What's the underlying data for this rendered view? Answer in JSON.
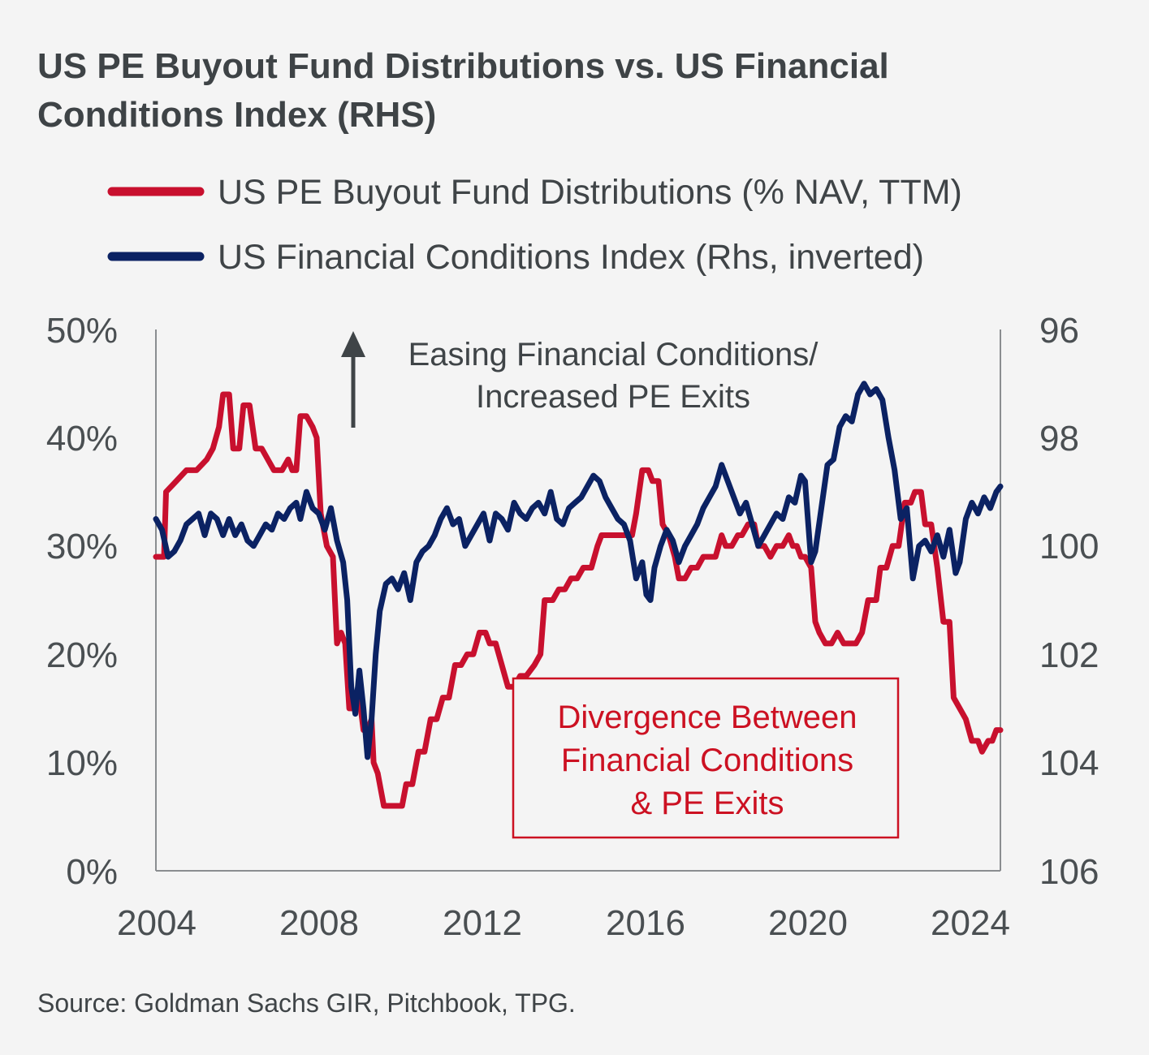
{
  "title_line1": "US PE Buyout Fund Distributions vs. US Financial",
  "title_line2": "Conditions Index (RHS)",
  "source": "Source: Goldman Sachs GIR, Pitchbook, TPG.",
  "colors": {
    "red": "#c8102e",
    "navy": "#0b2263",
    "axis": "#8a8d90",
    "text": "#3f4447"
  },
  "chart_data": {
    "type": "line",
    "title": "US PE Buyout Fund Distributions vs. US Financial Conditions Index (RHS)",
    "x_ticks": [
      "2004",
      "2008",
      "2012",
      "2016",
      "2020",
      "2024"
    ],
    "xlim": [
      2004,
      2024.75
    ],
    "y_left": {
      "ticks": [
        "50%",
        "40%",
        "30%",
        "20%",
        "10%",
        "0%"
      ],
      "ylim": [
        0,
        50
      ],
      "unit": "%"
    },
    "y_right": {
      "ticks": [
        "96",
        "98",
        "100",
        "102",
        "104",
        "106"
      ],
      "ylim": [
        96,
        106
      ],
      "inverted": true
    },
    "annotations": {
      "arrow_line1": "Easing Financial Conditions/",
      "arrow_line2": "Increased PE Exits",
      "box_line1": "Divergence Between",
      "box_line2": "Financial Conditions",
      "box_line3": "& PE Exits"
    },
    "series": [
      {
        "name": "US PE Buyout Fund Distributions (% NAV, TTM)",
        "axis": "left",
        "color": "#c8102e",
        "points": [
          [
            2004.0,
            29
          ],
          [
            2004.2,
            29
          ],
          [
            2004.25,
            35
          ],
          [
            2004.5,
            36
          ],
          [
            2004.75,
            37
          ],
          [
            2005.0,
            37
          ],
          [
            2005.25,
            38
          ],
          [
            2005.4,
            39
          ],
          [
            2005.55,
            41
          ],
          [
            2005.65,
            44
          ],
          [
            2005.8,
            44
          ],
          [
            2005.9,
            39
          ],
          [
            2006.05,
            39
          ],
          [
            2006.15,
            43
          ],
          [
            2006.3,
            43
          ],
          [
            2006.45,
            39
          ],
          [
            2006.6,
            39
          ],
          [
            2006.75,
            38
          ],
          [
            2006.9,
            37
          ],
          [
            2007.1,
            37
          ],
          [
            2007.25,
            38
          ],
          [
            2007.35,
            37
          ],
          [
            2007.45,
            37
          ],
          [
            2007.55,
            42
          ],
          [
            2007.7,
            42
          ],
          [
            2007.85,
            41
          ],
          [
            2007.95,
            40
          ],
          [
            2008.05,
            33
          ],
          [
            2008.2,
            30
          ],
          [
            2008.35,
            29
          ],
          [
            2008.45,
            21
          ],
          [
            2008.55,
            22
          ],
          [
            2008.65,
            21
          ],
          [
            2008.75,
            15
          ],
          [
            2008.9,
            15
          ],
          [
            2009.0,
            16
          ],
          [
            2009.1,
            13
          ],
          [
            2009.2,
            13
          ],
          [
            2009.3,
            14
          ],
          [
            2009.35,
            10
          ],
          [
            2009.45,
            9
          ],
          [
            2009.6,
            6
          ],
          [
            2009.75,
            6
          ],
          [
            2009.9,
            6
          ],
          [
            2010.05,
            6
          ],
          [
            2010.15,
            8
          ],
          [
            2010.3,
            8
          ],
          [
            2010.45,
            11
          ],
          [
            2010.6,
            11
          ],
          [
            2010.75,
            14
          ],
          [
            2010.9,
            14
          ],
          [
            2011.05,
            16
          ],
          [
            2011.2,
            16
          ],
          [
            2011.35,
            19
          ],
          [
            2011.5,
            19
          ],
          [
            2011.65,
            20
          ],
          [
            2011.8,
            20
          ],
          [
            2011.95,
            22
          ],
          [
            2012.1,
            22
          ],
          [
            2012.2,
            21
          ],
          [
            2012.35,
            21
          ],
          [
            2012.5,
            19
          ],
          [
            2012.65,
            17
          ],
          [
            2012.8,
            17
          ],
          [
            2012.95,
            18
          ],
          [
            2013.1,
            18
          ],
          [
            2013.3,
            19
          ],
          [
            2013.45,
            20
          ],
          [
            2013.55,
            25
          ],
          [
            2013.75,
            25
          ],
          [
            2013.9,
            26
          ],
          [
            2014.05,
            26
          ],
          [
            2014.2,
            27
          ],
          [
            2014.35,
            27
          ],
          [
            2014.5,
            28
          ],
          [
            2014.7,
            28
          ],
          [
            2014.85,
            30
          ],
          [
            2014.95,
            31
          ],
          [
            2015.1,
            31
          ],
          [
            2015.3,
            31
          ],
          [
            2015.5,
            31
          ],
          [
            2015.7,
            31
          ],
          [
            2015.8,
            33
          ],
          [
            2015.95,
            37
          ],
          [
            2016.1,
            37
          ],
          [
            2016.2,
            36
          ],
          [
            2016.35,
            36
          ],
          [
            2016.45,
            32
          ],
          [
            2016.6,
            31
          ],
          [
            2016.75,
            29
          ],
          [
            2016.85,
            27
          ],
          [
            2017.0,
            27
          ],
          [
            2017.15,
            28
          ],
          [
            2017.3,
            28
          ],
          [
            2017.45,
            29
          ],
          [
            2017.6,
            29
          ],
          [
            2017.75,
            29
          ],
          [
            2017.9,
            31
          ],
          [
            2018.0,
            30
          ],
          [
            2018.15,
            30
          ],
          [
            2018.3,
            31
          ],
          [
            2018.4,
            31
          ],
          [
            2018.55,
            32
          ],
          [
            2018.7,
            32
          ],
          [
            2018.8,
            30
          ],
          [
            2018.95,
            30
          ],
          [
            2019.1,
            29
          ],
          [
            2019.25,
            30
          ],
          [
            2019.4,
            30
          ],
          [
            2019.55,
            31
          ],
          [
            2019.65,
            30
          ],
          [
            2019.75,
            30
          ],
          [
            2019.85,
            29
          ],
          [
            2019.95,
            29
          ],
          [
            2020.1,
            28
          ],
          [
            2020.2,
            23
          ],
          [
            2020.3,
            22
          ],
          [
            2020.45,
            21
          ],
          [
            2020.6,
            21
          ],
          [
            2020.75,
            22
          ],
          [
            2020.9,
            21
          ],
          [
            2021.05,
            21
          ],
          [
            2021.2,
            21
          ],
          [
            2021.35,
            22
          ],
          [
            2021.5,
            25
          ],
          [
            2021.7,
            25
          ],
          [
            2021.8,
            28
          ],
          [
            2021.95,
            28
          ],
          [
            2022.1,
            30
          ],
          [
            2022.25,
            30
          ],
          [
            2022.4,
            34
          ],
          [
            2022.55,
            34
          ],
          [
            2022.65,
            35
          ],
          [
            2022.8,
            35
          ],
          [
            2022.9,
            32
          ],
          [
            2023.05,
            32
          ],
          [
            2023.2,
            28
          ],
          [
            2023.35,
            23
          ],
          [
            2023.5,
            23
          ],
          [
            2023.6,
            16
          ],
          [
            2023.75,
            15
          ],
          [
            2023.9,
            14
          ],
          [
            2024.05,
            12
          ],
          [
            2024.2,
            12
          ],
          [
            2024.3,
            11
          ],
          [
            2024.45,
            12
          ],
          [
            2024.55,
            12
          ],
          [
            2024.65,
            13
          ],
          [
            2024.75,
            13
          ]
        ]
      },
      {
        "name": "US Financial Conditions Index (Rhs, inverted)",
        "axis": "right",
        "color": "#0b2263",
        "points": [
          [
            2004.0,
            99.5
          ],
          [
            2004.15,
            99.7
          ],
          [
            2004.3,
            100.2
          ],
          [
            2004.45,
            100.1
          ],
          [
            2004.6,
            99.9
          ],
          [
            2004.75,
            99.6
          ],
          [
            2004.9,
            99.5
          ],
          [
            2005.05,
            99.4
          ],
          [
            2005.2,
            99.8
          ],
          [
            2005.35,
            99.4
          ],
          [
            2005.5,
            99.5
          ],
          [
            2005.65,
            99.8
          ],
          [
            2005.8,
            99.5
          ],
          [
            2005.95,
            99.8
          ],
          [
            2006.1,
            99.6
          ],
          [
            2006.25,
            99.9
          ],
          [
            2006.4,
            100.0
          ],
          [
            2006.55,
            99.8
          ],
          [
            2006.7,
            99.6
          ],
          [
            2006.85,
            99.7
          ],
          [
            2007.0,
            99.4
          ],
          [
            2007.15,
            99.5
          ],
          [
            2007.3,
            99.3
          ],
          [
            2007.45,
            99.2
          ],
          [
            2007.55,
            99.5
          ],
          [
            2007.7,
            99.0
          ],
          [
            2007.85,
            99.3
          ],
          [
            2008.0,
            99.4
          ],
          [
            2008.15,
            99.7
          ],
          [
            2008.3,
            99.3
          ],
          [
            2008.45,
            99.9
          ],
          [
            2008.6,
            100.3
          ],
          [
            2008.7,
            101.0
          ],
          [
            2008.8,
            102.6
          ],
          [
            2008.9,
            103.1
          ],
          [
            2009.0,
            102.3
          ],
          [
            2009.1,
            103.0
          ],
          [
            2009.2,
            103.9
          ],
          [
            2009.3,
            103.2
          ],
          [
            2009.4,
            102.0
          ],
          [
            2009.5,
            101.2
          ],
          [
            2009.65,
            100.7
          ],
          [
            2009.8,
            100.6
          ],
          [
            2009.95,
            100.8
          ],
          [
            2010.1,
            100.5
          ],
          [
            2010.25,
            101.0
          ],
          [
            2010.4,
            100.3
          ],
          [
            2010.55,
            100.1
          ],
          [
            2010.7,
            100.0
          ],
          [
            2010.85,
            99.8
          ],
          [
            2011.0,
            99.5
          ],
          [
            2011.15,
            99.3
          ],
          [
            2011.3,
            99.6
          ],
          [
            2011.45,
            99.5
          ],
          [
            2011.6,
            100.0
          ],
          [
            2011.75,
            99.8
          ],
          [
            2011.9,
            99.6
          ],
          [
            2012.05,
            99.4
          ],
          [
            2012.2,
            99.9
          ],
          [
            2012.35,
            99.4
          ],
          [
            2012.5,
            99.5
          ],
          [
            2012.65,
            99.7
          ],
          [
            2012.8,
            99.2
          ],
          [
            2012.95,
            99.4
          ],
          [
            2013.1,
            99.5
          ],
          [
            2013.25,
            99.3
          ],
          [
            2013.4,
            99.2
          ],
          [
            2013.55,
            99.4
          ],
          [
            2013.7,
            99.0
          ],
          [
            2013.85,
            99.5
          ],
          [
            2014.0,
            99.6
          ],
          [
            2014.15,
            99.3
          ],
          [
            2014.3,
            99.2
          ],
          [
            2014.45,
            99.1
          ],
          [
            2014.6,
            98.9
          ],
          [
            2014.75,
            98.7
          ],
          [
            2014.9,
            98.8
          ],
          [
            2015.05,
            99.1
          ],
          [
            2015.2,
            99.3
          ],
          [
            2015.35,
            99.5
          ],
          [
            2015.5,
            99.6
          ],
          [
            2015.65,
            99.9
          ],
          [
            2015.8,
            100.6
          ],
          [
            2015.95,
            100.3
          ],
          [
            2016.05,
            100.9
          ],
          [
            2016.15,
            101.0
          ],
          [
            2016.25,
            100.4
          ],
          [
            2016.4,
            100.0
          ],
          [
            2016.55,
            99.7
          ],
          [
            2016.7,
            99.9
          ],
          [
            2016.85,
            100.3
          ],
          [
            2017.0,
            100.0
          ],
          [
            2017.15,
            99.8
          ],
          [
            2017.3,
            99.6
          ],
          [
            2017.45,
            99.3
          ],
          [
            2017.6,
            99.1
          ],
          [
            2017.75,
            98.9
          ],
          [
            2017.9,
            98.5
          ],
          [
            2018.05,
            98.8
          ],
          [
            2018.2,
            99.1
          ],
          [
            2018.35,
            99.4
          ],
          [
            2018.5,
            99.2
          ],
          [
            2018.65,
            99.6
          ],
          [
            2018.8,
            100.0
          ],
          [
            2018.95,
            99.8
          ],
          [
            2019.1,
            99.6
          ],
          [
            2019.25,
            99.4
          ],
          [
            2019.4,
            99.5
          ],
          [
            2019.55,
            99.1
          ],
          [
            2019.7,
            99.2
          ],
          [
            2019.85,
            98.7
          ],
          [
            2019.95,
            98.8
          ],
          [
            2020.1,
            100.3
          ],
          [
            2020.2,
            100.1
          ],
          [
            2020.35,
            99.3
          ],
          [
            2020.5,
            98.5
          ],
          [
            2020.65,
            98.4
          ],
          [
            2020.8,
            97.8
          ],
          [
            2020.95,
            97.6
          ],
          [
            2021.1,
            97.7
          ],
          [
            2021.25,
            97.2
          ],
          [
            2021.4,
            97.0
          ],
          [
            2021.55,
            97.2
          ],
          [
            2021.7,
            97.1
          ],
          [
            2021.85,
            97.3
          ],
          [
            2022.0,
            98.0
          ],
          [
            2022.15,
            98.6
          ],
          [
            2022.3,
            99.5
          ],
          [
            2022.45,
            99.3
          ],
          [
            2022.6,
            100.6
          ],
          [
            2022.75,
            100.0
          ],
          [
            2022.9,
            99.9
          ],
          [
            2023.05,
            100.1
          ],
          [
            2023.2,
            99.8
          ],
          [
            2023.35,
            100.2
          ],
          [
            2023.5,
            99.7
          ],
          [
            2023.65,
            100.5
          ],
          [
            2023.75,
            100.3
          ],
          [
            2023.9,
            99.5
          ],
          [
            2024.05,
            99.2
          ],
          [
            2024.2,
            99.4
          ],
          [
            2024.35,
            99.1
          ],
          [
            2024.5,
            99.3
          ],
          [
            2024.65,
            99.0
          ],
          [
            2024.75,
            98.9
          ]
        ]
      }
    ]
  }
}
